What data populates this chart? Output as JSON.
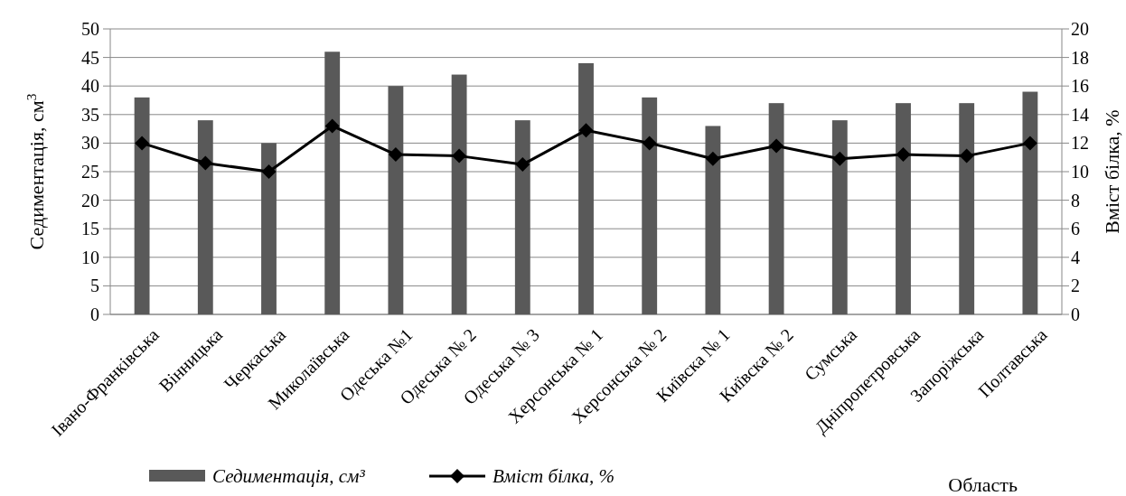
{
  "chart_data": {
    "type": "bar",
    "xlabel": "Область",
    "ylabel": "Седиментація, см$^{3}$",
    "y2label": "Вміст білка, %",
    "categories": [
      "Івано-Франківська",
      "Вінницька",
      "Черкаська",
      "Миколаївська",
      "Одеська №1",
      "Одеська № 2",
      "Одеська № 3",
      "Херсонська № 1",
      "Херсонська № 2",
      "Київска № 1",
      "Київска № 2",
      "Сумська",
      "Дніпропетровська",
      "Запоріжська",
      "Полтавська"
    ],
    "series": [
      {
        "name": "Седиментація, см³",
        "color": "#595959",
        "values": [
          38,
          34,
          30,
          46,
          40,
          42,
          34,
          44,
          38,
          33,
          37,
          34,
          37,
          37,
          39
        ]
      },
      {
        "name": "Вміст білка, %",
        "type": "line",
        "axis": "y2",
        "color": "#000000",
        "marker": "diamond",
        "values": [
          12,
          10.6,
          10,
          13.2,
          11.2,
          11.1,
          10.5,
          12.9,
          12,
          10.9,
          11.8,
          10.9,
          11.2,
          11.1,
          12
        ]
      }
    ],
    "ylim": [
      0,
      50
    ],
    "yticks": [
      0,
      5,
      10,
      15,
      20,
      25,
      30,
      35,
      40,
      45,
      50
    ],
    "y2lim": [
      0,
      20
    ],
    "y2ticks": [
      0,
      2,
      4,
      6,
      8,
      10,
      12,
      14,
      16,
      18,
      20
    ],
    "grid": "y",
    "legend": "bottom"
  }
}
